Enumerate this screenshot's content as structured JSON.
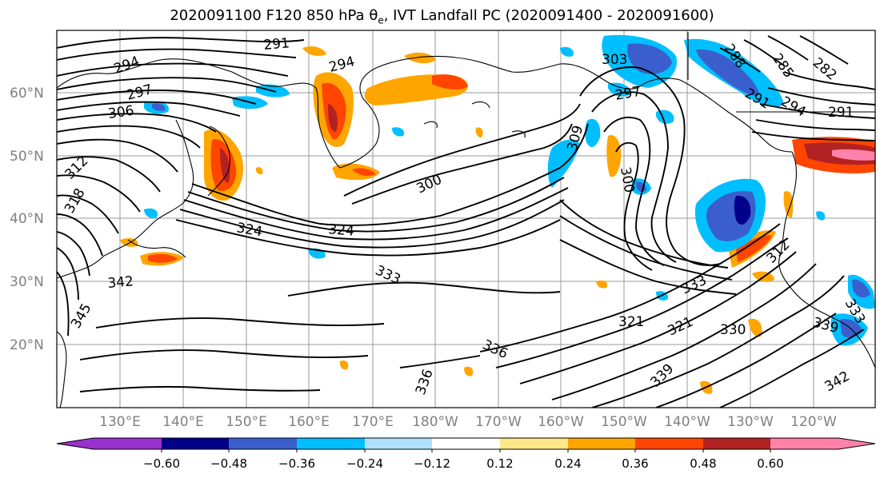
{
  "title_main": "2020091100 F120 850 hPa ",
  "title_theta": "θ",
  "title_sub": "e",
  "title_rest": ", IVT Landfall PC (2020091400 - 2020091600)",
  "lat_labels": [
    "60°N",
    "50°N",
    "40°N",
    "30°N",
    "20°N"
  ],
  "lon_labels": [
    "130°E",
    "140°E",
    "150°E",
    "160°E",
    "170°E",
    "180°W",
    "170°W",
    "160°W",
    "150°W",
    "140°W",
    "130°W",
    "120°W"
  ],
  "contour_labels": [
    "291",
    "294",
    "294",
    "297",
    "306",
    "312",
    "318",
    "324",
    "324",
    "300",
    "309",
    "300",
    "303",
    "288",
    "285",
    "282",
    "291",
    "291",
    "297",
    "294",
    "333",
    "342",
    "345",
    "312",
    "333",
    "321",
    "321",
    "330",
    "336",
    "336",
    "339",
    "339",
    "342",
    "333"
  ],
  "colorbar": {
    "tick_labels": [
      "−0.60",
      "−0.48",
      "−0.36",
      "−0.24",
      "−0.12",
      "0.12",
      "0.24",
      "0.36",
      "0.48",
      "0.60"
    ],
    "colors": [
      "#9932cc",
      "#00008b",
      "#3a5fcd",
      "#00bfff",
      "#b0e2ff",
      "#ffffff",
      "#ffe88a",
      "#ffa500",
      "#ff4500",
      "#b22222",
      "#ff82ab"
    ]
  }
}
